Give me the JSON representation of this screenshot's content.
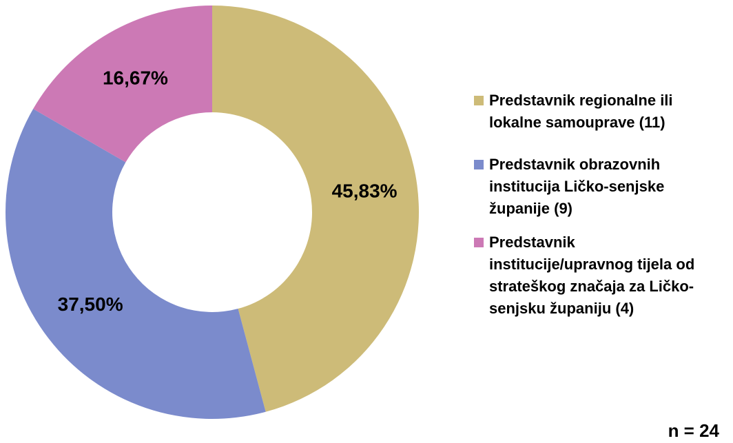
{
  "chart_data": {
    "type": "donut",
    "categories": [
      "Predstavnik regionalne ili lokalne samouprave (11)",
      "Predstavnik obrazovnih institucija Ličko-senjske županije (9)",
      "Predstavnik institucije/upravnog tijela od strateškog značaja za Ličko-senjsku županiju (4)"
    ],
    "values": [
      45.83,
      37.5,
      16.67
    ],
    "value_labels": [
      "45,83%",
      "37,50%",
      "16,67%"
    ],
    "colors": [
      "#cdbb78",
      "#7b8bcc",
      "#cc79b5"
    ],
    "annotation": "n = 24"
  }
}
